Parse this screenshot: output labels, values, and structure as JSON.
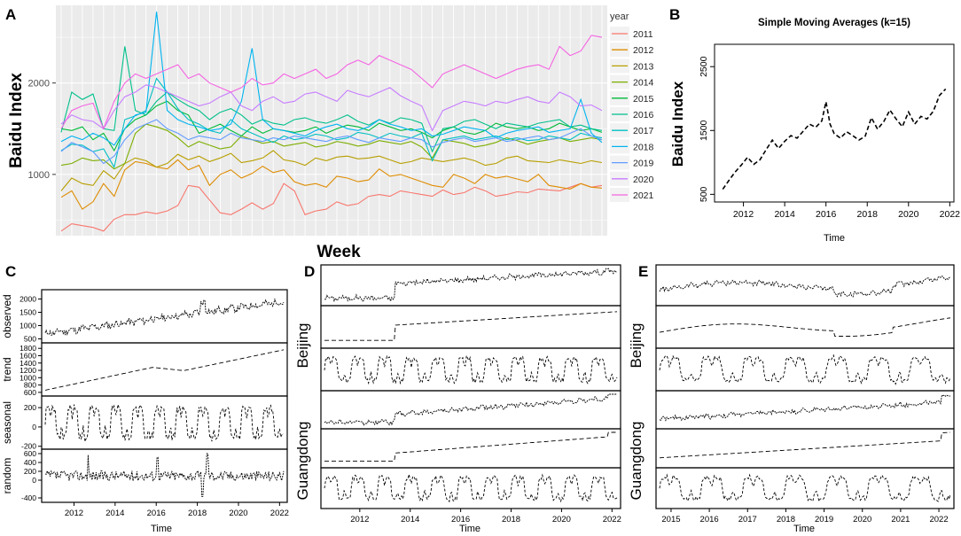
{
  "chart_data": [
    {
      "panel": "A",
      "type": "line",
      "xlabel": "Week",
      "ylabel": "Baidu Index",
      "ylim": [
        330,
        2850
      ],
      "yticks": [
        1000,
        2000
      ],
      "legend_title": "year",
      "legend_position": "right",
      "x": [
        1,
        2,
        3,
        4,
        5,
        6,
        7,
        8,
        9,
        10,
        11,
        12,
        13,
        14,
        15,
        16,
        17,
        18,
        19,
        20,
        21,
        22,
        23,
        24,
        25,
        26,
        27,
        28,
        29,
        30,
        31,
        32,
        33,
        34,
        35,
        36,
        37,
        38,
        39,
        40,
        41,
        42,
        43,
        44,
        45,
        46,
        47,
        48,
        49,
        50,
        51,
        52
      ],
      "series": [
        {
          "name": "2011",
          "color": "#F8766D",
          "values": [
            380,
            460,
            440,
            420,
            380,
            510,
            560,
            560,
            590,
            570,
            600,
            660,
            880,
            860,
            720,
            580,
            560,
            620,
            690,
            620,
            680,
            900,
            820,
            560,
            600,
            620,
            700,
            660,
            680,
            760,
            780,
            760,
            820,
            800,
            780,
            760,
            830,
            780,
            800,
            860,
            820,
            760,
            780,
            810,
            800,
            840,
            830,
            820,
            860,
            900,
            860,
            880
          ]
        },
        {
          "name": "2012",
          "color": "#DE8C00",
          "values": [
            750,
            820,
            620,
            700,
            900,
            760,
            1050,
            1140,
            1120,
            1080,
            1060,
            1160,
            1050,
            1100,
            880,
            1000,
            1050,
            960,
            1010,
            1090,
            1020,
            1050,
            920,
            880,
            900,
            860,
            980,
            960,
            920,
            940,
            1060,
            980,
            1000,
            960,
            920,
            880,
            860,
            1000,
            960,
            900,
            1000,
            960,
            980,
            950,
            920,
            1000,
            880,
            860,
            840,
            900,
            860,
            850
          ]
        },
        {
          "name": "2013",
          "color": "#B79F00",
          "values": [
            820,
            960,
            900,
            880,
            1040,
            950,
            1120,
            1180,
            1150,
            1080,
            1120,
            1220,
            1160,
            1200,
            1140,
            1180,
            1230,
            1130,
            1150,
            1180,
            1260,
            1160,
            1140,
            1100,
            1180,
            1150,
            1190,
            1200,
            1170,
            1180,
            1200,
            1160,
            1120,
            1140,
            1180,
            1160,
            1140,
            1160,
            1180,
            1150,
            1100,
            1120,
            1180,
            1200,
            1150,
            1140,
            1130,
            1160,
            1140,
            1120,
            1150,
            1130
          ]
        },
        {
          "name": "2014",
          "color": "#7CAE00",
          "values": [
            1100,
            1120,
            1180,
            1150,
            1160,
            1060,
            1120,
            1450,
            1550,
            1520,
            1480,
            1400,
            1300,
            1360,
            1320,
            1280,
            1300,
            1420,
            1380,
            1340,
            1360,
            1310,
            1330,
            1350,
            1300,
            1320,
            1360,
            1340,
            1310,
            1330,
            1370,
            1350,
            1330,
            1360,
            1300,
            1180,
            1380,
            1360,
            1340,
            1300,
            1320,
            1350,
            1400,
            1370,
            1330,
            1360,
            1380,
            1400,
            1360,
            1380,
            1400,
            1380
          ]
        },
        {
          "name": "2015",
          "color": "#00BA38",
          "values": [
            1500,
            1480,
            1520,
            1380,
            1450,
            1260,
            1500,
            1600,
            1650,
            1750,
            1800,
            1700,
            1650,
            1450,
            1500,
            1550,
            1480,
            1420,
            1520,
            1450,
            1500,
            1480,
            1460,
            1480,
            1520,
            1450,
            1500,
            1540,
            1520,
            1480,
            1560,
            1520,
            1480,
            1500,
            1460,
            1400,
            1480,
            1520,
            1460,
            1440,
            1480,
            1560,
            1520,
            1500,
            1520,
            1480,
            1500,
            1560,
            1520,
            1480,
            1500,
            1460
          ]
        },
        {
          "name": "2016",
          "color": "#00C08B",
          "values": [
            1460,
            1900,
            1820,
            1880,
            1500,
            1480,
            2400,
            1700,
            1650,
            1800,
            1900,
            1820,
            1750,
            1700,
            1600,
            1680,
            1720,
            1650,
            1550,
            1600,
            1560,
            1540,
            1600,
            1620,
            1580,
            1560,
            1600,
            1650,
            1580,
            1540,
            1600,
            1560,
            1620,
            1600,
            1560,
            1250,
            1500,
            1520,
            1580,
            1600,
            1550,
            1500,
            1560,
            1540,
            1520,
            1560,
            1580,
            1600,
            1520,
            1540,
            1500,
            1480
          ]
        },
        {
          "name": "2017",
          "color": "#00BFC4",
          "values": [
            1260,
            1330,
            1320,
            1250,
            1280,
            1080,
            1600,
            1640,
            1700,
            2050,
            1900,
            1720,
            1600,
            1550,
            1480,
            1450,
            1600,
            1500,
            1450,
            1400,
            1350,
            1420,
            1380,
            1400,
            1440,
            1420,
            1380,
            1400,
            1460,
            1440,
            1400,
            1450,
            1420,
            1400,
            1450,
            1150,
            1380,
            1400,
            1420,
            1380,
            1400,
            1420,
            1380,
            1400,
            1370,
            1380,
            1420,
            1400,
            1380,
            1450,
            1420,
            1400
          ]
        },
        {
          "name": "2018",
          "color": "#00B4F0",
          "values": [
            1360,
            1420,
            1380,
            1450,
            1400,
            1320,
            1500,
            1650,
            1680,
            2780,
            1700,
            1600,
            1550,
            1520,
            1480,
            1500,
            1550,
            1800,
            2380,
            1600,
            1500,
            1480,
            1450,
            1420,
            1480,
            1520,
            1550,
            1500,
            1480,
            1520,
            1600,
            1550,
            1520,
            1480,
            1500,
            1420,
            1440,
            1480,
            1520,
            1500,
            1480,
            1400,
            1450,
            1480,
            1500,
            1520,
            1460,
            1480,
            1500,
            1820,
            1450,
            1350
          ]
        },
        {
          "name": "2019",
          "color": "#619CFF",
          "values": [
            1250,
            1350,
            1300,
            1250,
            1120,
            1200,
            1380,
            1500,
            1550,
            1600,
            1500,
            1450,
            1380,
            1420,
            1400,
            1380,
            1450,
            1400,
            1380,
            1360,
            1400,
            1380,
            1420,
            1400,
            1380,
            1360,
            1400,
            1420,
            1380,
            1350,
            1400,
            1380,
            1360,
            1400,
            1380,
            1300,
            1350,
            1380,
            1400,
            1360,
            1380,
            1400,
            1360,
            1380,
            1400,
            1420,
            1380,
            1400,
            1450,
            1500,
            1420,
            1380
          ]
        },
        {
          "name": "2020",
          "color": "#C77CFF",
          "values": [
            1550,
            1650,
            1600,
            1580,
            1500,
            1700,
            1850,
            1900,
            1980,
            1950,
            1900,
            1850,
            1800,
            1750,
            1780,
            1850,
            1900,
            1750,
            1700,
            1800,
            1850,
            1780,
            1800,
            1880,
            1900,
            1850,
            1800,
            1920,
            1880,
            1850,
            1900,
            1950,
            1860,
            1800,
            1750,
            1480,
            1700,
            1750,
            1800,
            1780,
            1750,
            1800,
            1780,
            1820,
            1850,
            1800,
            1780,
            1900,
            1850,
            1750,
            1760,
            1700
          ]
        },
        {
          "name": "2021",
          "color": "#F564E3",
          "values": [
            1500,
            1700,
            1750,
            1780,
            1500,
            1800,
            2000,
            2100,
            2050,
            2100,
            2150,
            2200,
            2050,
            2100,
            2000,
            1950,
            1900,
            1950,
            2050,
            1980,
            2000,
            2100,
            2050,
            2100,
            2150,
            2050,
            2100,
            2200,
            2250,
            2200,
            2300,
            2250,
            2200,
            2150,
            2050,
            1950,
            2100,
            2150,
            2200,
            2150,
            2100,
            2050,
            2100,
            2150,
            2180,
            2200,
            2150,
            2400,
            2300,
            2350,
            2520,
            2500
          ]
        }
      ]
    },
    {
      "panel": "B",
      "type": "line",
      "title": "Simple Moving Averages (k=15)",
      "xlabel": "Time",
      "ylabel": "Baidu Index",
      "xlim": [
        2010.6,
        2022.2
      ],
      "ylim": [
        380,
        2850
      ],
      "xticks": [
        2012,
        2014,
        2016,
        2018,
        2020,
        2022
      ],
      "yticks": [
        500,
        1500,
        2500
      ],
      "x": [
        2011.0,
        2011.3,
        2011.6,
        2011.9,
        2012.2,
        2012.5,
        2012.8,
        2013.1,
        2013.4,
        2013.7,
        2014.0,
        2014.3,
        2014.6,
        2014.9,
        2015.2,
        2015.5,
        2015.8,
        2016.0,
        2016.2,
        2016.4,
        2016.7,
        2017.0,
        2017.3,
        2017.6,
        2017.9,
        2018.2,
        2018.5,
        2018.8,
        2019.1,
        2019.4,
        2019.7,
        2020.0,
        2020.3,
        2020.6,
        2020.9,
        2021.2,
        2021.5,
        2021.8
      ],
      "values": [
        580,
        720,
        850,
        960,
        1080,
        970,
        1040,
        1200,
        1350,
        1220,
        1330,
        1420,
        1380,
        1490,
        1600,
        1550,
        1650,
        1950,
        1600,
        1450,
        1380,
        1480,
        1420,
        1350,
        1410,
        1700,
        1520,
        1640,
        1820,
        1680,
        1560,
        1790,
        1600,
        1720,
        1680,
        1800,
        2050,
        2150
      ]
    },
    {
      "panel": "C",
      "type": "line",
      "xlabel": "Time",
      "xlim": [
        2010.6,
        2022.2
      ],
      "xticks": [
        2012,
        2014,
        2016,
        2018,
        2020,
        2022
      ],
      "strips": [
        {
          "label": "observed",
          "ylim": [
            350,
            2350
          ],
          "yticks": [
            500,
            1000,
            1500,
            2000
          ]
        },
        {
          "label": "trend",
          "ylim": [
            500,
            1950
          ],
          "yticks": [
            600,
            800,
            1000,
            1200,
            1400,
            1600,
            1800
          ]
        },
        {
          "label": "seasonal",
          "ylim": [
            -230,
            320
          ],
          "yticks": [
            -200,
            0,
            200
          ]
        },
        {
          "label": "random",
          "ylim": [
            -500,
            700
          ],
          "yticks": [
            -400,
            0,
            200,
            400,
            600
          ]
        }
      ]
    },
    {
      "panel": "D",
      "type": "line",
      "xlabel": "Time",
      "xlim": [
        2010.6,
        2022.2
      ],
      "xticks": [
        2012,
        2014,
        2016,
        2018,
        2020,
        2022
      ],
      "regions": [
        "Beijing",
        "Guangdong"
      ]
    },
    {
      "panel": "E",
      "type": "line",
      "xlabel": "Time",
      "xlim": [
        2014.7,
        2022.3
      ],
      "xticks": [
        2015,
        2016,
        2017,
        2018,
        2019,
        2020,
        2021,
        2022
      ],
      "regions": [
        "Beijing",
        "Guangdong"
      ]
    }
  ]
}
